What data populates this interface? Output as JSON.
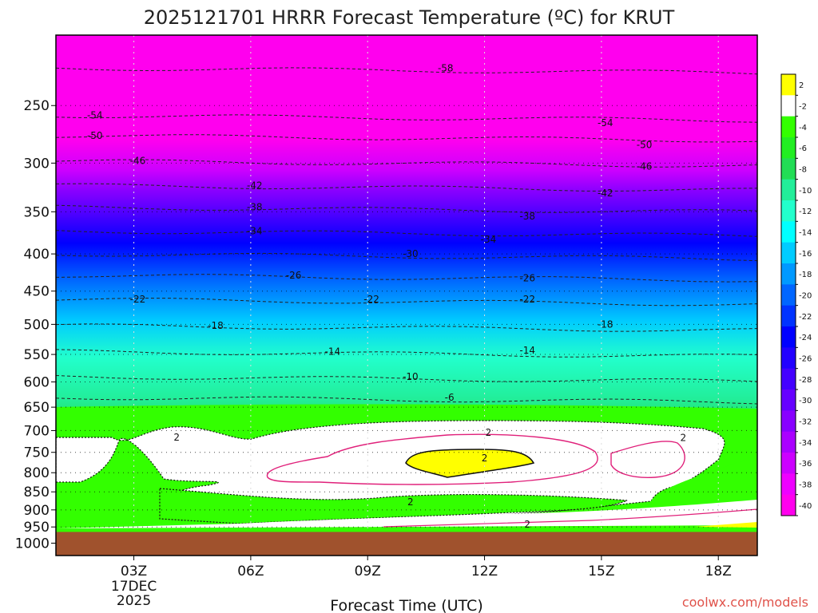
{
  "chart_data": {
    "type": "heatmap",
    "title": "2025121701 HRRR Forecast Temperature (ºC) for KRUT",
    "xlabel": "Forecast Time (UTC)",
    "ylabel": "",
    "x_ticks": [
      {
        "hour": 3,
        "label": "03Z",
        "sub": [
          "17DEC",
          "2025"
        ]
      },
      {
        "hour": 6,
        "label": "06Z"
      },
      {
        "hour": 9,
        "label": "09Z"
      },
      {
        "hour": 12,
        "label": "12Z"
      },
      {
        "hour": 15,
        "label": "15Z"
      },
      {
        "hour": 18,
        "label": "18Z"
      }
    ],
    "xlim": [
      1,
      19
    ],
    "y_ticks": [
      250,
      300,
      350,
      400,
      450,
      500,
      550,
      600,
      650,
      700,
      750,
      800,
      850,
      900,
      950,
      1000
    ],
    "ylim": [
      200,
      1040
    ],
    "yscale": "log-pressure",
    "colorbar": {
      "labels": [
        "2",
        "-2",
        "-4",
        "-6",
        "-8",
        "-10",
        "-12",
        "-14",
        "-16",
        "-18",
        "-20",
        "-22",
        "-24",
        "-26",
        "-28",
        "-30",
        "-32",
        "-34",
        "-36",
        "-38",
        "-40"
      ],
      "colors": [
        "#ffff00",
        "#ffffff",
        "#33ff00",
        "#22ee22",
        "#22dd55",
        "#22ee99",
        "#22ffcc",
        "#00ffff",
        "#00ccff",
        "#0099ff",
        "#0066ff",
        "#0033ff",
        "#0000ff",
        "#2200ff",
        "#4400ff",
        "#6600ff",
        "#8800ff",
        "#aa00ff",
        "#cc00ff",
        "#ee00ff",
        "#ff00ee"
      ]
    },
    "isotherm_levels": [
      {
        "temp": -58,
        "p": 222
      },
      {
        "temp": -54,
        "p": 258
      },
      {
        "temp": -50,
        "p": 275
      },
      {
        "temp": -46,
        "p": 298
      },
      {
        "temp": -42,
        "p": 322
      },
      {
        "temp": -38,
        "p": 345
      },
      {
        "temp": -34,
        "p": 372
      },
      {
        "temp": -30,
        "p": 400
      },
      {
        "temp": -26,
        "p": 428
      },
      {
        "temp": -22,
        "p": 462
      },
      {
        "temp": -18,
        "p": 502
      },
      {
        "temp": -14,
        "p": 545
      },
      {
        "temp": -10,
        "p": 590
      },
      {
        "temp": -6,
        "p": 630
      }
    ],
    "contour_labels": [
      {
        "text": "-58",
        "hour": 11.0,
        "p": 222
      },
      {
        "text": "-54",
        "hour": 2.0,
        "p": 258
      },
      {
        "text": "-54",
        "hour": 15.1,
        "p": 264
      },
      {
        "text": "-50",
        "hour": 2.0,
        "p": 275
      },
      {
        "text": "-50",
        "hour": 16.1,
        "p": 283
      },
      {
        "text": "-46",
        "hour": 3.1,
        "p": 298
      },
      {
        "text": "-46",
        "hour": 16.1,
        "p": 303
      },
      {
        "text": "-42",
        "hour": 6.1,
        "p": 322
      },
      {
        "text": "-42",
        "hour": 15.1,
        "p": 330
      },
      {
        "text": "-38",
        "hour": 6.1,
        "p": 345
      },
      {
        "text": "-38",
        "hour": 13.1,
        "p": 355
      },
      {
        "text": "-34",
        "hour": 6.1,
        "p": 372
      },
      {
        "text": "-34",
        "hour": 12.1,
        "p": 382
      },
      {
        "text": "-30",
        "hour": 10.1,
        "p": 400
      },
      {
        "text": "-26",
        "hour": 7.1,
        "p": 428
      },
      {
        "text": "-26",
        "hour": 13.1,
        "p": 432
      },
      {
        "text": "-22",
        "hour": 3.1,
        "p": 462
      },
      {
        "text": "-22",
        "hour": 9.1,
        "p": 462
      },
      {
        "text": "-22",
        "hour": 13.1,
        "p": 462
      },
      {
        "text": "-18",
        "hour": 5.1,
        "p": 502
      },
      {
        "text": "-18",
        "hour": 15.1,
        "p": 500
      },
      {
        "text": "-14",
        "hour": 8.1,
        "p": 545
      },
      {
        "text": "-14",
        "hour": 13.1,
        "p": 543
      },
      {
        "text": "-10",
        "hour": 10.1,
        "p": 590
      },
      {
        "text": "-6",
        "hour": 11.1,
        "p": 630
      },
      {
        "text": "2",
        "hour": 4.1,
        "p": 715
      },
      {
        "text": "2",
        "hour": 12.1,
        "p": 705
      },
      {
        "text": "2",
        "hour": 17.1,
        "p": 716
      },
      {
        "text": "2",
        "hour": 12.0,
        "p": 764
      },
      {
        "text": "2",
        "hour": 10.1,
        "p": 878
      },
      {
        "text": "2",
        "hour": 13.1,
        "p": 942
      }
    ],
    "ground_pressure": 965
  },
  "credit": "coolwx.com/models"
}
